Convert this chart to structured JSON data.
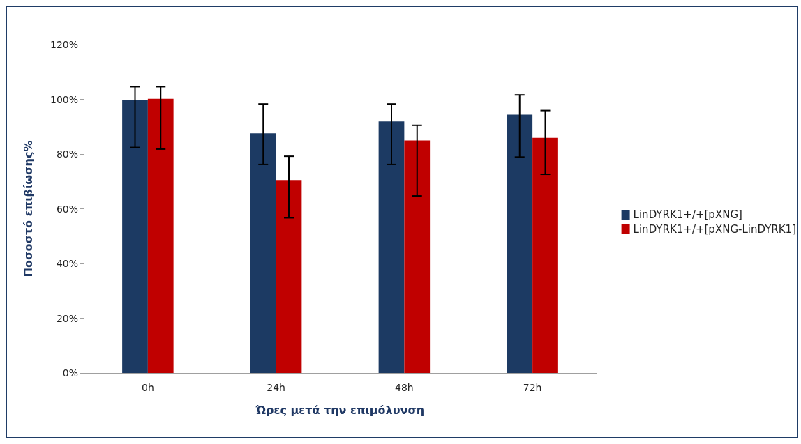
{
  "chart_data": {
    "type": "bar",
    "xlabel": "Ώρες μετά την επιμόλυνση",
    "ylabel": "Ποσοστό επιβίωσης%",
    "categories": [
      "0h",
      "24h",
      "48h",
      "72h"
    ],
    "series": [
      {
        "name": "LinDYRK1+/+[pXNG]",
        "color": "#1c3a63",
        "values": [
          99.9,
          87.6,
          91.9,
          94.4
        ],
        "errors": [
          [
            82.4,
            104.6
          ],
          [
            76.2,
            98.3
          ],
          [
            76.2,
            98.3
          ],
          [
            78.9,
            101.6
          ]
        ]
      },
      {
        "name": "LinDYRK1+/+[pXNG-LinDYRK1]",
        "color": "#c00000",
        "values": [
          100.2,
          70.5,
          85.0,
          85.9
        ],
        "errors": [
          [
            81.8,
            104.6
          ],
          [
            56.7,
            79.2
          ],
          [
            64.7,
            90.5
          ],
          [
            72.6,
            95.9
          ]
        ]
      }
    ],
    "ylim": [
      0,
      120
    ],
    "yticks": [
      {
        "value": 0,
        "label": "0%"
      },
      {
        "value": 20,
        "label": "20%"
      },
      {
        "value": 40,
        "label": "40%"
      },
      {
        "value": 60,
        "label": "60%"
      },
      {
        "value": 80,
        "label": "80%"
      },
      {
        "value": 100,
        "label": "100%"
      },
      {
        "value": 120,
        "label": "120%"
      }
    ],
    "grid": false,
    "legend": "right"
  }
}
